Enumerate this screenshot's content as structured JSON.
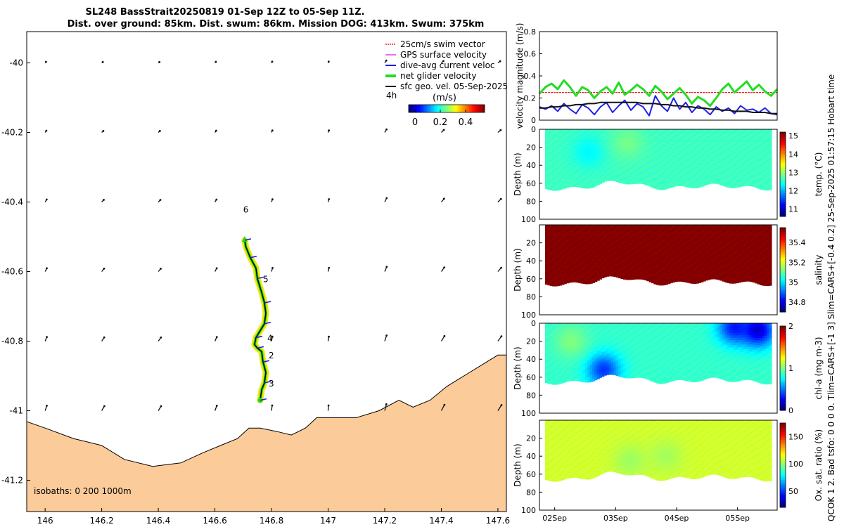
{
  "title_lines": [
    "SL248 BassStrait20250819 01-Sep 12Z to 05-Sep 11Z.",
    "Dist. over ground: 85km. Dist. swum: 86km. Mission DOG: 413km. Swum: 375km"
  ],
  "side_label": "QCOK 1 2. Bad tsfo: 0 0 0 0. Tlim=CARS+[-1 3] Slim=CARS+[-0.4 0.2] 25-Sep-2025 01:57:15 Hobart time",
  "colors": {
    "land": "#fbcb9a",
    "track_halo": "#f6e60a",
    "track": "#000000",
    "swim_vector": "#e8261e",
    "gps_velocity": "#e63be6",
    "current": "#2020e8",
    "net_velocity": "#22dd22",
    "geo_velocity": "#111111"
  },
  "chart_data": [
    {
      "type": "map",
      "id": "glider-track-map",
      "x_ticks": [
        "146",
        "146.2",
        "146.4",
        "146.6",
        "146.8",
        "147",
        "147.2",
        "147.4",
        "147.6"
      ],
      "x_tick_values": [
        146,
        146.2,
        146.4,
        146.6,
        146.8,
        147,
        147.2,
        147.4,
        147.6
      ],
      "xlim": [
        145.935,
        147.63
      ],
      "y_ticks": [
        "-40",
        "-40.2",
        "-40.4",
        "-40.6",
        "-40.8",
        "-41",
        "-41.2"
      ],
      "y_tick_values": [
        -40,
        -40.2,
        -40.4,
        -40.6,
        -40.8,
        -41,
        -41.2
      ],
      "ylim": [
        -41.29,
        -39.91
      ],
      "legend": [
        {
          "label": "25cm/s swim vector",
          "color_key": "swim_vector"
        },
        {
          "label": "GPS surface velocity",
          "color_key": "gps_velocity"
        },
        {
          "label": "dive-avg current veloc",
          "color_key": "current"
        },
        {
          "label": "net glider velocity",
          "color_key": "net_velocity"
        },
        {
          "label": "sfc geo. vel. 05-Sep-2025",
          "color_key": "geo_velocity"
        }
      ],
      "legend_note": "4h",
      "colorbar": {
        "title": "(m/s)",
        "ticks": [
          "0",
          "0.2",
          "0.4"
        ],
        "range": [
          -0.05,
          0.55
        ]
      },
      "isobaths_label": "isobaths: 0   200  1000m",
      "day_markers": [
        {
          "label": "6",
          "lon": 146.7,
          "lat": -40.43
        },
        {
          "label": "5",
          "lon": 146.77,
          "lat": -40.63
        },
        {
          "label": "4",
          "lon": 146.785,
          "lat": -40.8
        },
        {
          "label": "2",
          "lon": 146.79,
          "lat": -40.85
        },
        {
          "label": "3",
          "lon": 146.79,
          "lat": -40.93
        }
      ],
      "track": [
        [
          146.76,
          -40.97
        ],
        [
          146.765,
          -40.94
        ],
        [
          146.775,
          -40.92
        ],
        [
          146.78,
          -40.89
        ],
        [
          146.77,
          -40.86
        ],
        [
          146.765,
          -40.83
        ],
        [
          146.75,
          -40.82
        ],
        [
          146.74,
          -40.81
        ],
        [
          146.745,
          -40.79
        ],
        [
          146.76,
          -40.77
        ],
        [
          146.775,
          -40.75
        ],
        [
          146.78,
          -40.72
        ],
        [
          146.775,
          -40.69
        ],
        [
          146.765,
          -40.66
        ],
        [
          146.75,
          -40.62
        ],
        [
          146.745,
          -40.59
        ],
        [
          146.725,
          -40.56
        ],
        [
          146.71,
          -40.53
        ],
        [
          146.705,
          -40.51
        ]
      ],
      "geo_vector_grid": {
        "lons": [
          146,
          146.2,
          146.4,
          146.6,
          146.8,
          147,
          147.2,
          147.4,
          147.6
        ],
        "lats": [
          -40,
          -40.2,
          -40.4,
          -40.6,
          -40.8,
          -41
        ]
      }
    },
    {
      "type": "line",
      "id": "velocity-magnitude",
      "ylabel": "velocity magnitude (m/s)",
      "ylim": [
        0,
        0.8
      ],
      "y_ticks": [
        "0",
        "0.2",
        "0.4",
        "0.6",
        "0.8"
      ],
      "xlim_days": [
        0.75,
        4.65
      ],
      "series": [
        {
          "name": "swim vector",
          "color_key": "swim_vector",
          "values": [
            0.25,
            0.25,
            0.25,
            0.25,
            0.25,
            0.25,
            0.25,
            0.25,
            0.25,
            0.25,
            0.25,
            0.25,
            0.25,
            0.25,
            0.25,
            0.25,
            0.25,
            0.25,
            0.25,
            0.25,
            0.25,
            0.25,
            0.25,
            0.25,
            0.25,
            0.25,
            0.25,
            0.25,
            0.25,
            0.25,
            0.25,
            0.25,
            0.25,
            0.25,
            0.25,
            0.25,
            0.25,
            0.25,
            0.25,
            0.25
          ]
        },
        {
          "name": "net glider velocity",
          "color_key": "net_velocity",
          "values": [
            0.24,
            0.3,
            0.33,
            0.28,
            0.36,
            0.3,
            0.22,
            0.3,
            0.27,
            0.2,
            0.26,
            0.3,
            0.24,
            0.34,
            0.23,
            0.27,
            0.32,
            0.28,
            0.22,
            0.31,
            0.26,
            0.19,
            0.24,
            0.29,
            0.23,
            0.15,
            0.21,
            0.18,
            0.13,
            0.2,
            0.28,
            0.33,
            0.25,
            0.3,
            0.35,
            0.27,
            0.32,
            0.26,
            0.22,
            0.28
          ]
        },
        {
          "name": "dive-avg current",
          "color_key": "current",
          "values": [
            0.12,
            0.1,
            0.13,
            0.08,
            0.15,
            0.1,
            0.06,
            0.14,
            0.11,
            0.05,
            0.12,
            0.16,
            0.07,
            0.13,
            0.18,
            0.09,
            0.15,
            0.12,
            0.04,
            0.22,
            0.13,
            0.08,
            0.2,
            0.1,
            0.16,
            0.07,
            0.13,
            0.1,
            0.05,
            0.12,
            0.08,
            0.11,
            0.06,
            0.13,
            0.09,
            0.1,
            0.07,
            0.11,
            0.06,
            0.05
          ]
        },
        {
          "name": "sfc geo. vel.",
          "color_key": "geo_velocity",
          "values": [
            0.11,
            0.11,
            0.12,
            0.12,
            0.13,
            0.13,
            0.14,
            0.14,
            0.15,
            0.15,
            0.16,
            0.16,
            0.16,
            0.16,
            0.16,
            0.16,
            0.16,
            0.15,
            0.15,
            0.15,
            0.14,
            0.14,
            0.13,
            0.13,
            0.12,
            0.12,
            0.11,
            0.11,
            0.1,
            0.1,
            0.09,
            0.09,
            0.08,
            0.08,
            0.08,
            0.07,
            0.07,
            0.07,
            0.06,
            0.06
          ]
        }
      ]
    },
    {
      "type": "heatmap",
      "id": "temperature-section",
      "ylabel": "Depth (m)",
      "y_ticks": [
        "0",
        "20",
        "40",
        "60",
        "80",
        "100"
      ],
      "ylim": [
        0,
        100
      ],
      "colorbar_label": "temp. (°C)",
      "colorbar_ticks": [
        "11",
        "12",
        "13",
        "14",
        "15"
      ],
      "crange": [
        10.6,
        15.2
      ],
      "base_value": 12.6,
      "blobs": [
        {
          "day": 1.5,
          "depth": 25,
          "value": 12.3
        },
        {
          "day": 2.15,
          "depth": 15,
          "value": 12.85
        }
      ]
    },
    {
      "type": "heatmap",
      "id": "salinity-section",
      "ylabel": "Depth (m)",
      "y_ticks": [
        "20",
        "40",
        "60",
        "80",
        "100"
      ],
      "ylim": [
        0,
        100
      ],
      "colorbar_label": "salinity",
      "colorbar_ticks": [
        "34.8",
        "35",
        "35.2",
        "35.4"
      ],
      "crange": [
        34.7,
        35.55
      ],
      "base_value": 35.55,
      "blobs": []
    },
    {
      "type": "heatmap",
      "id": "chla-section",
      "ylabel": "Depth (m)",
      "y_ticks": [
        "0",
        "20",
        "40",
        "60",
        "80",
        "100"
      ],
      "ylim": [
        0,
        100
      ],
      "colorbar_label": "chl-a (mg m-3)",
      "colorbar_ticks": [
        "0",
        "1",
        "2"
      ],
      "crange": [
        0,
        2
      ],
      "base_value": 0.85,
      "blobs": [
        {
          "day": 1.75,
          "depth": 52,
          "value": 0.35
        },
        {
          "day": 3.95,
          "depth": 5,
          "value": 0.3
        },
        {
          "day": 4.35,
          "depth": 8,
          "value": 0.15
        },
        {
          "day": 1.2,
          "depth": 20,
          "value": 1.0
        }
      ]
    },
    {
      "type": "heatmap",
      "id": "oxygen-section",
      "ylabel": "Depth (m)",
      "y_ticks": [
        "20",
        "40",
        "60",
        "80",
        "100"
      ],
      "ylim": [
        0,
        100
      ],
      "colorbar_label": "Ox. sat. ratio (%)",
      "colorbar_ticks": [
        "50",
        "100",
        "150"
      ],
      "crange": [
        20,
        175
      ],
      "base_value": 110,
      "blobs": [
        {
          "day": 2.2,
          "depth": 45,
          "value": 102
        },
        {
          "day": 2.8,
          "depth": 40,
          "value": 103
        }
      ],
      "x_ticks": [
        "02Sep",
        "03Sep",
        "04Sep",
        "05Sep"
      ],
      "x_tick_days": [
        1,
        2,
        3,
        4
      ]
    }
  ]
}
